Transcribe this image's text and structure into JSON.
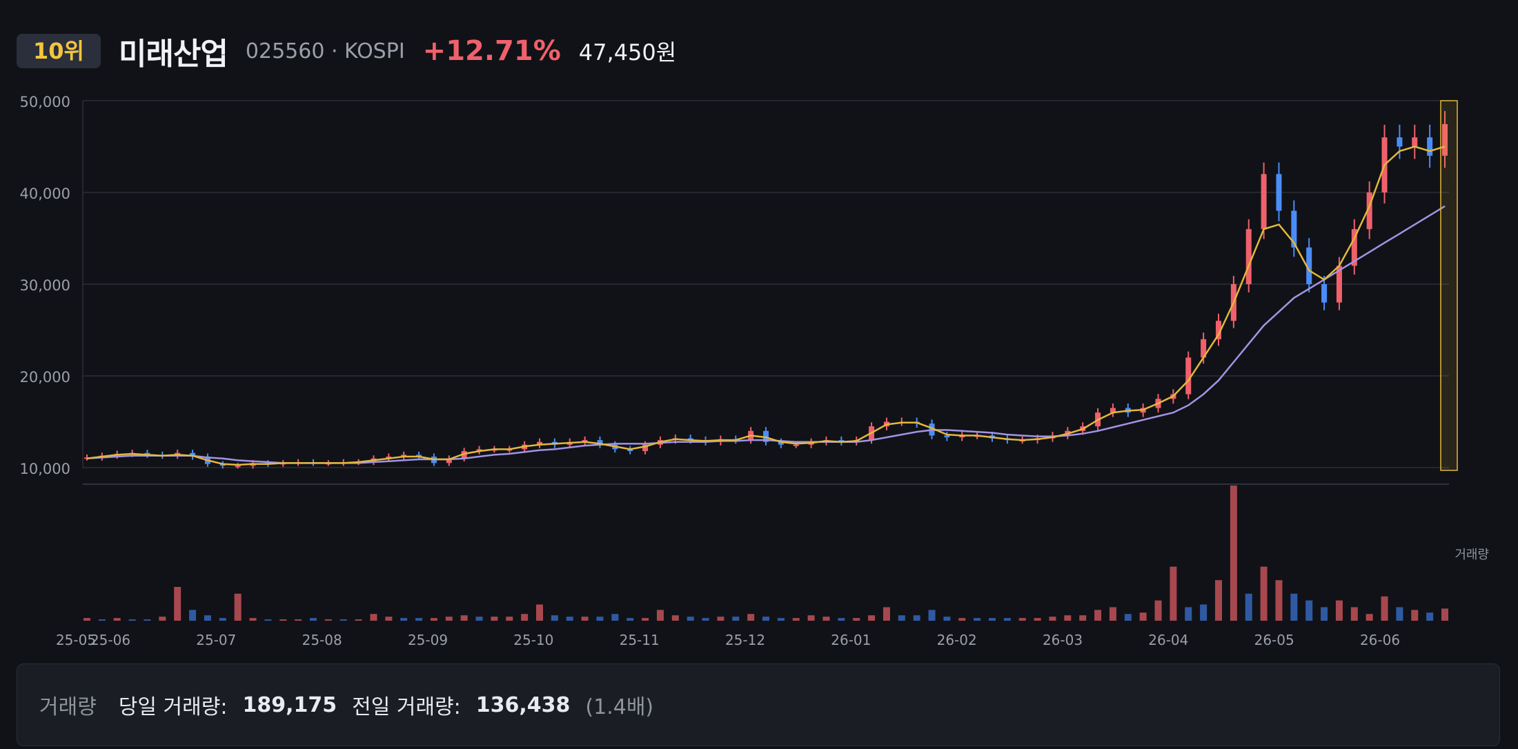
{
  "header": {
    "rank": "10위",
    "name": "미래산업",
    "code_market": "025560 · KOSPI",
    "change": "+12.71%",
    "price": "47,450원"
  },
  "volume_panel": {
    "label": "거래량",
    "today_label": "당일 거래량:",
    "today_value": "189,175",
    "prev_label": "전일 거래량:",
    "prev_value": "136,438",
    "ratio": "(1.4배)"
  },
  "colors": {
    "background": "#111217",
    "up": "#f0616b",
    "down": "#4b8df8",
    "ma_short": "#e2b93b",
    "ma_long": "#a294e6",
    "highlight": "#e2b93b"
  },
  "chart_data": {
    "type": "candlestick",
    "ylim": [
      10000,
      50000
    ],
    "y_ticks": [
      "50,000",
      "40,000",
      "30,000",
      "20,000",
      "10,000"
    ],
    "y_tick_values": [
      50000,
      40000,
      30000,
      20000,
      10000
    ],
    "x_ticks": [
      "25-05",
      "25-06",
      "25-07",
      "25-08",
      "25-09",
      "25-10",
      "25-11",
      "25-12",
      "26-01",
      "26-02",
      "26-03",
      "26-04",
      "26-05",
      "26-06"
    ],
    "volume_label": "거래량",
    "series": [
      {
        "name": "close",
        "values": [
          11100,
          11300,
          11500,
          11600,
          11400,
          11300,
          11600,
          11200,
          10400,
          10200,
          10200,
          10500,
          10400,
          10500,
          10600,
          10500,
          10500,
          10600,
          10600,
          11000,
          11200,
          11400,
          11200,
          10500,
          11000,
          11800,
          12000,
          12000,
          12000,
          12500,
          12800,
          12500,
          12800,
          13000,
          12500,
          12000,
          11800,
          12500,
          13000,
          13200,
          13000,
          12800,
          13100,
          13000,
          14000,
          12800,
          12500,
          12500,
          12800,
          13000,
          12800,
          13000,
          14500,
          15000,
          15000,
          14800,
          13500,
          13300,
          13500,
          13500,
          13200,
          13000,
          13000,
          13200,
          13500,
          14000,
          14500,
          16000,
          16500,
          16000,
          16500,
          17500,
          18000,
          22000,
          24000,
          26000,
          30000,
          36000,
          42000,
          38000,
          34000,
          30000,
          28000,
          32000,
          36000,
          40000,
          46000,
          45000,
          46000,
          44000,
          47450
        ]
      },
      {
        "name": "MA-short",
        "values": [
          11000,
          11200,
          11400,
          11500,
          11400,
          11300,
          11400,
          11300,
          10800,
          10400,
          10300,
          10400,
          10400,
          10500,
          10500,
          10500,
          10500,
          10500,
          10600,
          10800,
          11000,
          11200,
          11200,
          10900,
          10900,
          11500,
          11800,
          12000,
          12000,
          12300,
          12500,
          12600,
          12700,
          12800,
          12600,
          12300,
          12000,
          12300,
          12800,
          13100,
          13000,
          12900,
          13000,
          13000,
          13500,
          13300,
          12800,
          12600,
          12700,
          12900,
          12800,
          12900,
          13800,
          14700,
          14900,
          14900,
          14300,
          13600,
          13500,
          13500,
          13300,
          13100,
          13000,
          13100,
          13300,
          13700,
          14200,
          15200,
          16000,
          16200,
          16300,
          17000,
          17800,
          19500,
          22000,
          24500,
          28000,
          32000,
          36000,
          36500,
          34500,
          31500,
          30500,
          32000,
          35000,
          38500,
          43000,
          44500,
          45000,
          44500,
          45000
        ]
      },
      {
        "name": "MA-long",
        "values": [
          11000,
          11100,
          11200,
          11300,
          11300,
          11300,
          11300,
          11300,
          11100,
          11000,
          10800,
          10700,
          10600,
          10500,
          10500,
          10500,
          10500,
          10500,
          10500,
          10600,
          10700,
          10800,
          10900,
          10900,
          10900,
          11000,
          11200,
          11400,
          11500,
          11700,
          11900,
          12000,
          12200,
          12400,
          12500,
          12600,
          12600,
          12600,
          12700,
          12800,
          12800,
          12800,
          12900,
          12900,
          13000,
          13000,
          12900,
          12800,
          12800,
          12800,
          12800,
          12800,
          13000,
          13300,
          13600,
          13900,
          14100,
          14100,
          14000,
          13900,
          13800,
          13600,
          13500,
          13400,
          13400,
          13500,
          13700,
          14000,
          14400,
          14800,
          15200,
          15600,
          16000,
          16800,
          18000,
          19500,
          21500,
          23500,
          25500,
          27000,
          28500,
          29500,
          30500,
          31500,
          32500,
          33500,
          34500,
          35500,
          36500,
          37500,
          38500
        ]
      },
      {
        "name": "volume",
        "values": [
          2,
          1,
          2,
          1,
          1,
          3,
          25,
          8,
          4,
          2,
          20,
          2,
          1,
          1,
          1,
          2,
          1,
          1,
          1,
          5,
          3,
          2,
          2,
          2,
          3,
          4,
          3,
          3,
          3,
          5,
          12,
          4,
          3,
          3,
          3,
          5,
          2,
          2,
          8,
          4,
          3,
          2,
          3,
          3,
          5,
          3,
          2,
          2,
          4,
          3,
          2,
          2,
          4,
          10,
          4,
          4,
          8,
          3,
          2,
          2,
          2,
          2,
          2,
          2,
          3,
          4,
          4,
          8,
          10,
          5,
          6,
          15,
          40,
          10,
          12,
          30,
          100,
          20,
          40,
          30,
          20,
          15,
          10,
          15,
          10,
          5,
          18,
          10,
          8,
          6,
          9
        ]
      }
    ],
    "volume_direction": [
      1,
      0,
      1,
      0,
      0,
      1,
      1,
      0,
      0,
      0,
      1,
      1,
      0,
      1,
      1,
      0,
      1,
      0,
      1,
      1,
      1,
      0,
      0,
      1,
      1,
      1,
      0,
      1,
      1,
      1,
      1,
      0,
      0,
      1,
      0,
      0,
      0,
      1,
      1,
      1,
      0,
      0,
      1,
      0,
      1,
      0,
      0,
      1,
      1,
      1,
      0,
      1,
      1,
      1,
      0,
      0,
      0,
      0,
      1,
      0,
      0,
      0,
      1,
      1,
      1,
      1,
      1,
      1,
      1,
      0,
      1,
      1,
      1,
      0,
      0,
      1,
      1,
      0,
      1,
      1,
      0,
      0,
      0,
      1,
      1,
      1,
      1,
      0,
      1,
      0,
      1
    ]
  }
}
